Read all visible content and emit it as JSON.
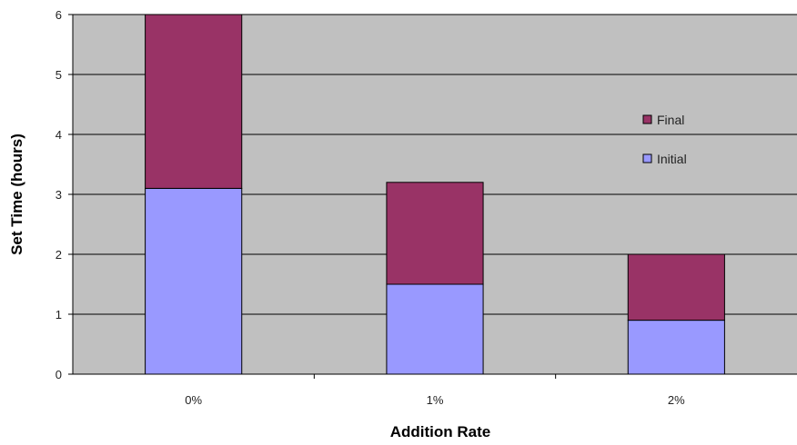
{
  "chart_data": {
    "type": "bar",
    "stacked": true,
    "categories": [
      "0%",
      "1%",
      "2%"
    ],
    "series": [
      {
        "name": "Initial",
        "values": [
          3.1,
          1.5,
          0.9
        ],
        "color": "#9999ff"
      },
      {
        "name": "Final",
        "values": [
          2.9,
          1.7,
          1.1
        ],
        "color": "#993366"
      }
    ],
    "title": "",
    "xlabel": "Addition Rate",
    "ylabel": "Set Time (hours)",
    "ylim": [
      0,
      6
    ],
    "yticks": [
      "0",
      "1",
      "2",
      "3",
      "4",
      "5",
      "6"
    ],
    "grid": true,
    "legend_position": "right",
    "legend_order": [
      "Final",
      "Initial"
    ],
    "plot_background": "#c0c0c0"
  }
}
